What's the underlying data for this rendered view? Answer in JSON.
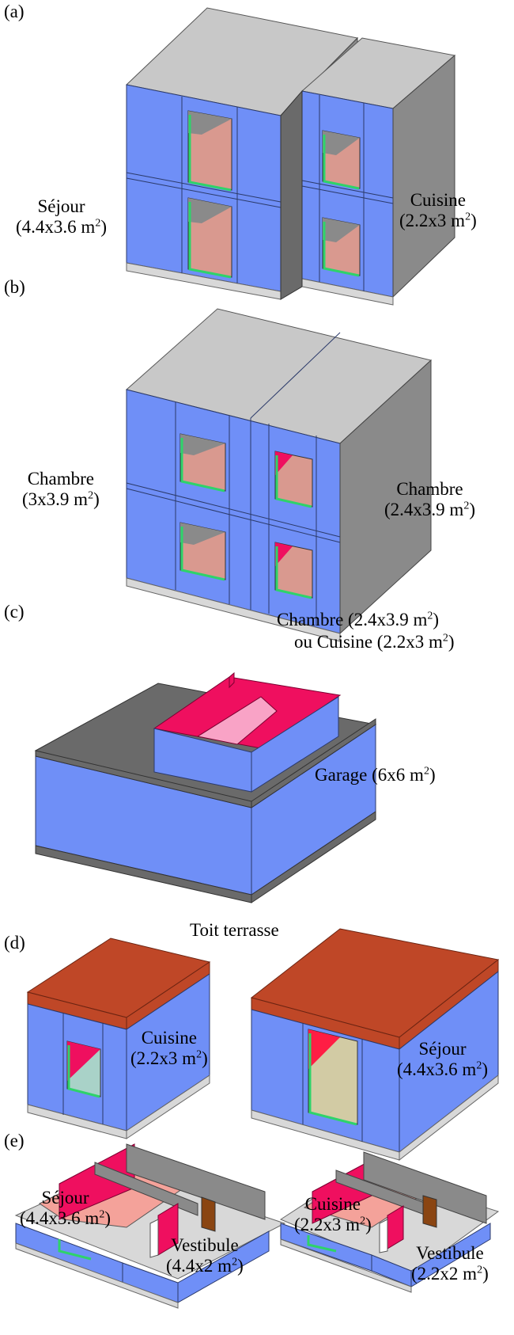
{
  "panels": {
    "a": {
      "tag": "(a)",
      "left_room": {
        "name": "Séjour",
        "dims": "(4.4x3.6 m",
        "sup": "2",
        "close": ")"
      },
      "right_room": {
        "name": "Cuisine",
        "dims": "(2.2x3 m",
        "sup": "2",
        "close": ")"
      }
    },
    "b": {
      "tag": "(b)",
      "left_room": {
        "name": "Chambre",
        "dims": "(3x3.9 m",
        "sup": "2",
        "close": ")"
      },
      "right_room": {
        "name": "Chambre",
        "dims": "(2.4x3.9 m",
        "sup": "2",
        "close": ")"
      }
    },
    "c": {
      "tag": "(c)",
      "upper_room_line1": {
        "text": "Chambre (2.4x3.9 m",
        "sup": "2",
        "close": ")"
      },
      "upper_room_line2": {
        "text": "ou Cuisine (2.2x3 m",
        "sup": "2",
        "close": ")"
      },
      "garage": {
        "text": "Garage (6x6 m",
        "sup": "2",
        "close": ")"
      }
    },
    "d": {
      "tag": "(d)",
      "roof_label": "Toit terrasse",
      "left_room": {
        "name": "Cuisine",
        "dims": "(2.2x3 m",
        "sup": "2",
        "close": ")"
      },
      "right_room": {
        "name": "Séjour",
        "dims": "(4.4x3.6 m",
        "sup": "2",
        "close": ")"
      }
    },
    "e": {
      "tag": "(e)",
      "left_a": {
        "name": "Séjour",
        "dims": "(4.4x3.6 m",
        "sup": "2",
        "close": ")"
      },
      "left_b": {
        "name": "Vestibule",
        "dims": "(4.4x2 m",
        "sup": "2",
        "close": ")"
      },
      "right_a": {
        "name": "Cuisine",
        "dims": "(2.2x3 m",
        "sup": "2",
        "close": ")"
      },
      "right_b": {
        "name": "Vestibule",
        "dims": "(2.2x2 m",
        "sup": "2",
        "close": ")"
      }
    }
  },
  "colors": {
    "wall_blue": "#6f8ff7",
    "roof_grey": "#c8c8c8",
    "side_grey": "#8a8a8a",
    "dark_grey": "#6a6a6a",
    "roof_brick": "#bf4727",
    "interior_pink": "#ef0f5f",
    "floor_pink": "#f4a29a",
    "window_green": "#2ed36a"
  }
}
